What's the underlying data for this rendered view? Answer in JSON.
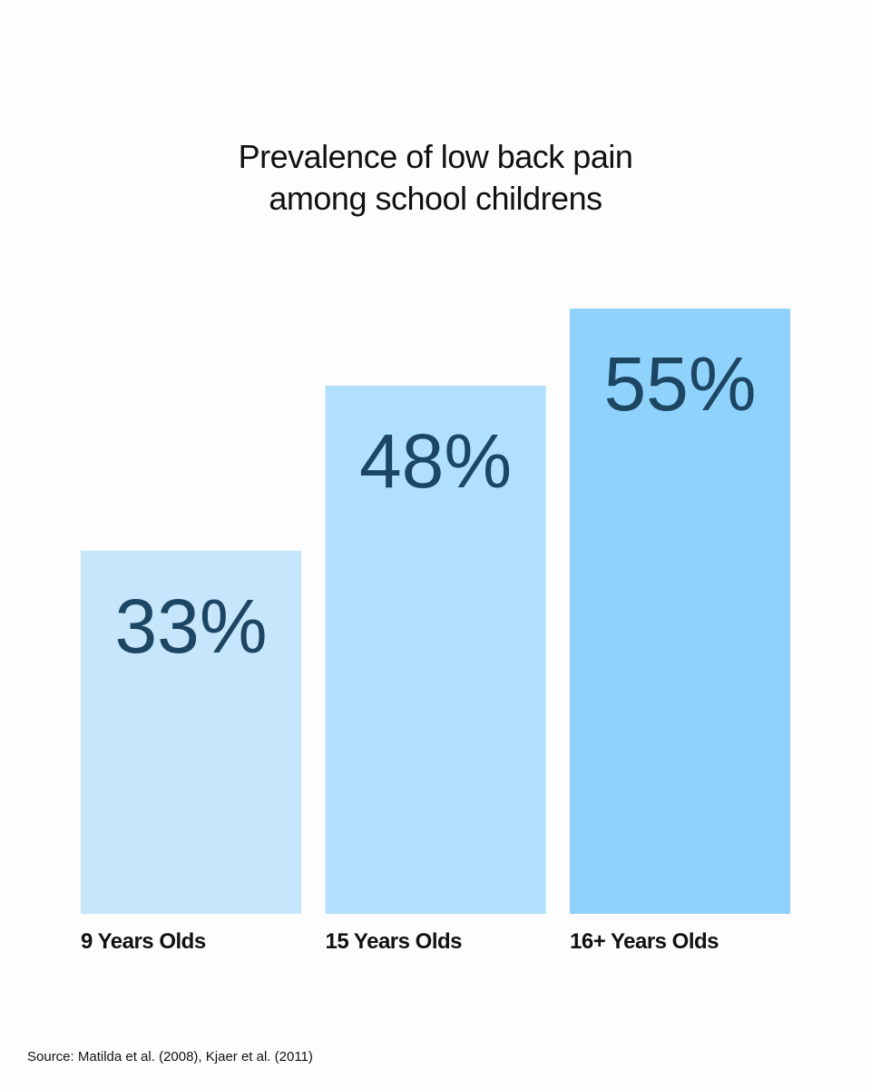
{
  "chart_data": {
    "type": "bar",
    "title": "Prevalence of low back pain among school childrens",
    "categories": [
      "9 Years Olds",
      "15 Years Olds",
      "16+ Years Olds"
    ],
    "values": [
      33,
      48,
      55
    ],
    "value_labels": [
      "33%",
      "48%",
      "55%"
    ],
    "colors": [
      "#c5e6fb",
      "#b0e0fd",
      "#8fd3fd"
    ],
    "source": "Source: Matilda et al.  (2008), Kjaer et al. (2011)"
  }
}
